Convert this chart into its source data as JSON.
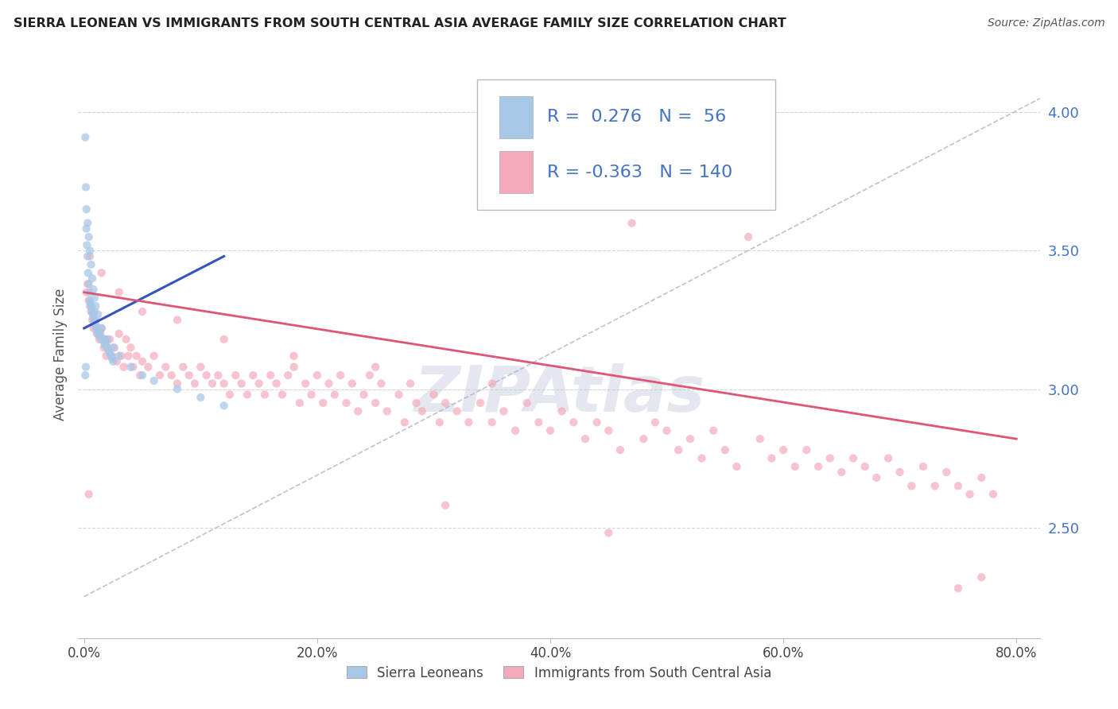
{
  "title": "SIERRA LEONEAN VS IMMIGRANTS FROM SOUTH CENTRAL ASIA AVERAGE FAMILY SIZE CORRELATION CHART",
  "source": "Source: ZipAtlas.com",
  "ylabel": "Average Family Size",
  "x_tick_labels": [
    "0.0%",
    "20.0%",
    "40.0%",
    "60.0%",
    "80.0%"
  ],
  "x_tick_positions": [
    0,
    20,
    40,
    60,
    80
  ],
  "y_tick_labels_right": [
    "2.50",
    "3.00",
    "3.50",
    "4.00"
  ],
  "y_tick_positions": [
    2.5,
    3.0,
    3.5,
    4.0
  ],
  "ylim": [
    2.1,
    4.15
  ],
  "xlim": [
    -0.5,
    82
  ],
  "legend_entry1": "Sierra Leoneans",
  "legend_entry2": "Immigrants from South Central Asia",
  "R1": 0.276,
  "N1": 56,
  "R2": -0.363,
  "N2": 140,
  "color_blue": "#A8C8E8",
  "color_pink": "#F4AABB",
  "color_blue_line": "#3355BB",
  "color_pink_line": "#E05575",
  "color_diag": "#AAAACC",
  "color_title": "#222222",
  "color_source": "#555555",
  "color_RN": "#4472C4",
  "watermark_color": "#BCC5D8",
  "blue_points": [
    [
      0.1,
      3.91
    ],
    [
      0.15,
      3.73
    ],
    [
      0.2,
      3.58
    ],
    [
      0.25,
      3.52
    ],
    [
      0.3,
      3.48
    ],
    [
      0.35,
      3.42
    ],
    [
      0.4,
      3.38
    ],
    [
      0.45,
      3.35
    ],
    [
      0.5,
      3.32
    ],
    [
      0.55,
      3.31
    ],
    [
      0.6,
      3.3
    ],
    [
      0.65,
      3.29
    ],
    [
      0.7,
      3.28
    ],
    [
      0.75,
      3.27
    ],
    [
      0.8,
      3.26
    ],
    [
      0.85,
      3.25
    ],
    [
      0.9,
      3.24
    ],
    [
      0.95,
      3.24
    ],
    [
      1.0,
      3.23
    ],
    [
      1.05,
      3.22
    ],
    [
      1.1,
      3.21
    ],
    [
      1.2,
      3.2
    ],
    [
      1.3,
      3.2
    ],
    [
      1.4,
      3.19
    ],
    [
      1.5,
      3.18
    ],
    [
      1.6,
      3.18
    ],
    [
      1.7,
      3.17
    ],
    [
      1.8,
      3.16
    ],
    [
      1.9,
      3.16
    ],
    [
      2.0,
      3.15
    ],
    [
      2.1,
      3.14
    ],
    [
      2.2,
      3.13
    ],
    [
      2.3,
      3.12
    ],
    [
      2.4,
      3.11
    ],
    [
      2.5,
      3.1
    ],
    [
      0.2,
      3.65
    ],
    [
      0.3,
      3.6
    ],
    [
      0.4,
      3.55
    ],
    [
      0.5,
      3.5
    ],
    [
      0.6,
      3.45
    ],
    [
      0.7,
      3.4
    ],
    [
      0.8,
      3.36
    ],
    [
      0.9,
      3.33
    ],
    [
      1.0,
      3.3
    ],
    [
      1.2,
      3.27
    ],
    [
      1.5,
      3.22
    ],
    [
      2.0,
      3.18
    ],
    [
      2.5,
      3.15
    ],
    [
      3.0,
      3.12
    ],
    [
      4.0,
      3.08
    ],
    [
      5.0,
      3.05
    ],
    [
      6.0,
      3.03
    ],
    [
      8.0,
      3.0
    ],
    [
      10.0,
      2.97
    ],
    [
      12.0,
      2.94
    ],
    [
      0.1,
      3.05
    ],
    [
      0.15,
      3.08
    ]
  ],
  "pink_points": [
    [
      0.2,
      3.35
    ],
    [
      0.3,
      3.38
    ],
    [
      0.4,
      3.32
    ],
    [
      0.5,
      3.3
    ],
    [
      0.6,
      3.28
    ],
    [
      0.7,
      3.25
    ],
    [
      0.8,
      3.22
    ],
    [
      0.9,
      3.28
    ],
    [
      1.0,
      3.25
    ],
    [
      1.1,
      3.2
    ],
    [
      1.2,
      3.22
    ],
    [
      1.3,
      3.18
    ],
    [
      1.4,
      3.2
    ],
    [
      1.5,
      3.22
    ],
    [
      1.6,
      3.18
    ],
    [
      1.7,
      3.15
    ],
    [
      1.8,
      3.18
    ],
    [
      1.9,
      3.12
    ],
    [
      2.0,
      3.15
    ],
    [
      2.2,
      3.18
    ],
    [
      2.4,
      3.12
    ],
    [
      2.6,
      3.15
    ],
    [
      2.8,
      3.1
    ],
    [
      3.0,
      3.2
    ],
    [
      3.2,
      3.12
    ],
    [
      3.4,
      3.08
    ],
    [
      3.6,
      3.18
    ],
    [
      3.8,
      3.12
    ],
    [
      4.0,
      3.15
    ],
    [
      4.2,
      3.08
    ],
    [
      4.5,
      3.12
    ],
    [
      4.8,
      3.05
    ],
    [
      5.0,
      3.1
    ],
    [
      5.5,
      3.08
    ],
    [
      6.0,
      3.12
    ],
    [
      6.5,
      3.05
    ],
    [
      7.0,
      3.08
    ],
    [
      7.5,
      3.05
    ],
    [
      8.0,
      3.02
    ],
    [
      8.5,
      3.08
    ],
    [
      9.0,
      3.05
    ],
    [
      9.5,
      3.02
    ],
    [
      10.0,
      3.08
    ],
    [
      10.5,
      3.05
    ],
    [
      11.0,
      3.02
    ],
    [
      11.5,
      3.05
    ],
    [
      12.0,
      3.02
    ],
    [
      12.5,
      2.98
    ],
    [
      13.0,
      3.05
    ],
    [
      13.5,
      3.02
    ],
    [
      14.0,
      2.98
    ],
    [
      14.5,
      3.05
    ],
    [
      15.0,
      3.02
    ],
    [
      15.5,
      2.98
    ],
    [
      16.0,
      3.05
    ],
    [
      16.5,
      3.02
    ],
    [
      17.0,
      2.98
    ],
    [
      17.5,
      3.05
    ],
    [
      18.0,
      3.08
    ],
    [
      18.5,
      2.95
    ],
    [
      19.0,
      3.02
    ],
    [
      19.5,
      2.98
    ],
    [
      20.0,
      3.05
    ],
    [
      20.5,
      2.95
    ],
    [
      21.0,
      3.02
    ],
    [
      21.5,
      2.98
    ],
    [
      22.0,
      3.05
    ],
    [
      22.5,
      2.95
    ],
    [
      23.0,
      3.02
    ],
    [
      23.5,
      2.92
    ],
    [
      24.0,
      2.98
    ],
    [
      24.5,
      3.05
    ],
    [
      25.0,
      2.95
    ],
    [
      25.5,
      3.02
    ],
    [
      26.0,
      2.92
    ],
    [
      27.0,
      2.98
    ],
    [
      27.5,
      2.88
    ],
    [
      28.0,
      3.02
    ],
    [
      28.5,
      2.95
    ],
    [
      29.0,
      2.92
    ],
    [
      30.0,
      2.98
    ],
    [
      30.5,
      2.88
    ],
    [
      31.0,
      2.95
    ],
    [
      32.0,
      2.92
    ],
    [
      33.0,
      2.88
    ],
    [
      34.0,
      2.95
    ],
    [
      35.0,
      2.88
    ],
    [
      36.0,
      2.92
    ],
    [
      37.0,
      2.85
    ],
    [
      38.0,
      2.95
    ],
    [
      39.0,
      2.88
    ],
    [
      40.0,
      2.85
    ],
    [
      41.0,
      2.92
    ],
    [
      42.0,
      2.88
    ],
    [
      43.0,
      2.82
    ],
    [
      44.0,
      2.88
    ],
    [
      45.0,
      2.85
    ],
    [
      46.0,
      2.78
    ],
    [
      47.0,
      3.6
    ],
    [
      48.0,
      2.82
    ],
    [
      49.0,
      2.88
    ],
    [
      50.0,
      2.85
    ],
    [
      51.0,
      2.78
    ],
    [
      52.0,
      2.82
    ],
    [
      53.0,
      2.75
    ],
    [
      54.0,
      2.85
    ],
    [
      55.0,
      2.78
    ],
    [
      56.0,
      2.72
    ],
    [
      57.0,
      3.55
    ],
    [
      58.0,
      2.82
    ],
    [
      59.0,
      2.75
    ],
    [
      60.0,
      2.78
    ],
    [
      61.0,
      2.72
    ],
    [
      62.0,
      2.78
    ],
    [
      63.0,
      2.72
    ],
    [
      64.0,
      2.75
    ],
    [
      65.0,
      2.7
    ],
    [
      66.0,
      2.75
    ],
    [
      67.0,
      2.72
    ],
    [
      68.0,
      2.68
    ],
    [
      69.0,
      2.75
    ],
    [
      70.0,
      2.7
    ],
    [
      71.0,
      2.65
    ],
    [
      72.0,
      2.72
    ],
    [
      73.0,
      2.65
    ],
    [
      74.0,
      2.7
    ],
    [
      75.0,
      2.65
    ],
    [
      76.0,
      2.62
    ],
    [
      77.0,
      2.68
    ],
    [
      78.0,
      2.62
    ],
    [
      0.5,
      3.48
    ],
    [
      1.5,
      3.42
    ],
    [
      3.0,
      3.35
    ],
    [
      5.0,
      3.28
    ],
    [
      8.0,
      3.25
    ],
    [
      12.0,
      3.18
    ],
    [
      18.0,
      3.12
    ],
    [
      25.0,
      3.08
    ],
    [
      35.0,
      3.02
    ],
    [
      75.0,
      2.28
    ],
    [
      77.0,
      2.32
    ],
    [
      0.4,
      2.62
    ],
    [
      31.0,
      2.58
    ],
    [
      45.0,
      2.48
    ]
  ],
  "blue_line_x": [
    0,
    12
  ],
  "blue_line_y": [
    3.22,
    3.48
  ],
  "pink_line_x": [
    0,
    80
  ],
  "pink_line_y": [
    3.35,
    2.82
  ],
  "diag_line_x": [
    0,
    82
  ],
  "diag_line_y": [
    2.25,
    4.05
  ]
}
